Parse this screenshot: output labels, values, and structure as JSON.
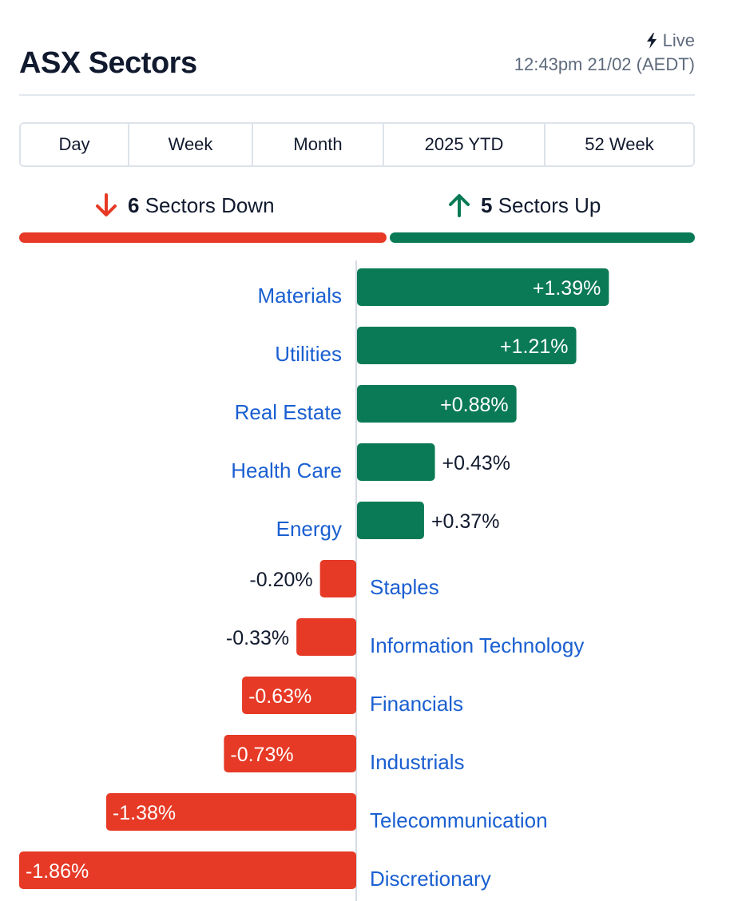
{
  "header": {
    "title": "ASX Sectors",
    "live_label": "Live",
    "timestamp": "12:43pm 21/02 (AEDT)"
  },
  "tabs": [
    {
      "label": "Day",
      "active": true
    },
    {
      "label": "Week",
      "active": false
    },
    {
      "label": "Month",
      "active": true
    },
    {
      "label": "2025 YTD",
      "active": false
    },
    {
      "label": "52 Week",
      "active": false
    }
  ],
  "summary": {
    "down_count": "6",
    "down_label": "Sectors Down",
    "up_count": "5",
    "up_label": "Sectors Up"
  },
  "colors": {
    "positive": "#0a7a56",
    "negative": "#e63a26",
    "link": "#1a5fd1",
    "text": "#111a2e",
    "muted": "#5f6b7d"
  },
  "chart_data": {
    "type": "bar",
    "orientation": "horizontal-diverging",
    "categories": [
      "Materials",
      "Utilities",
      "Real Estate",
      "Health Care",
      "Energy",
      "Staples",
      "Information Technology",
      "Financials",
      "Industrials",
      "Telecommunication",
      "Discretionary"
    ],
    "values": [
      1.39,
      1.21,
      0.88,
      0.43,
      0.37,
      -0.2,
      -0.33,
      -0.63,
      -0.73,
      -1.38,
      -1.86
    ],
    "labels": [
      "+1.39%",
      "+1.21%",
      "+0.88%",
      "+0.43%",
      "+0.37%",
      "-0.20%",
      "-0.33%",
      "-0.63%",
      "-0.73%",
      "-1.38%",
      "-1.86%"
    ],
    "unit": "%",
    "xlim": [
      -1.86,
      1.86
    ],
    "grid": false,
    "legend": "none"
  }
}
